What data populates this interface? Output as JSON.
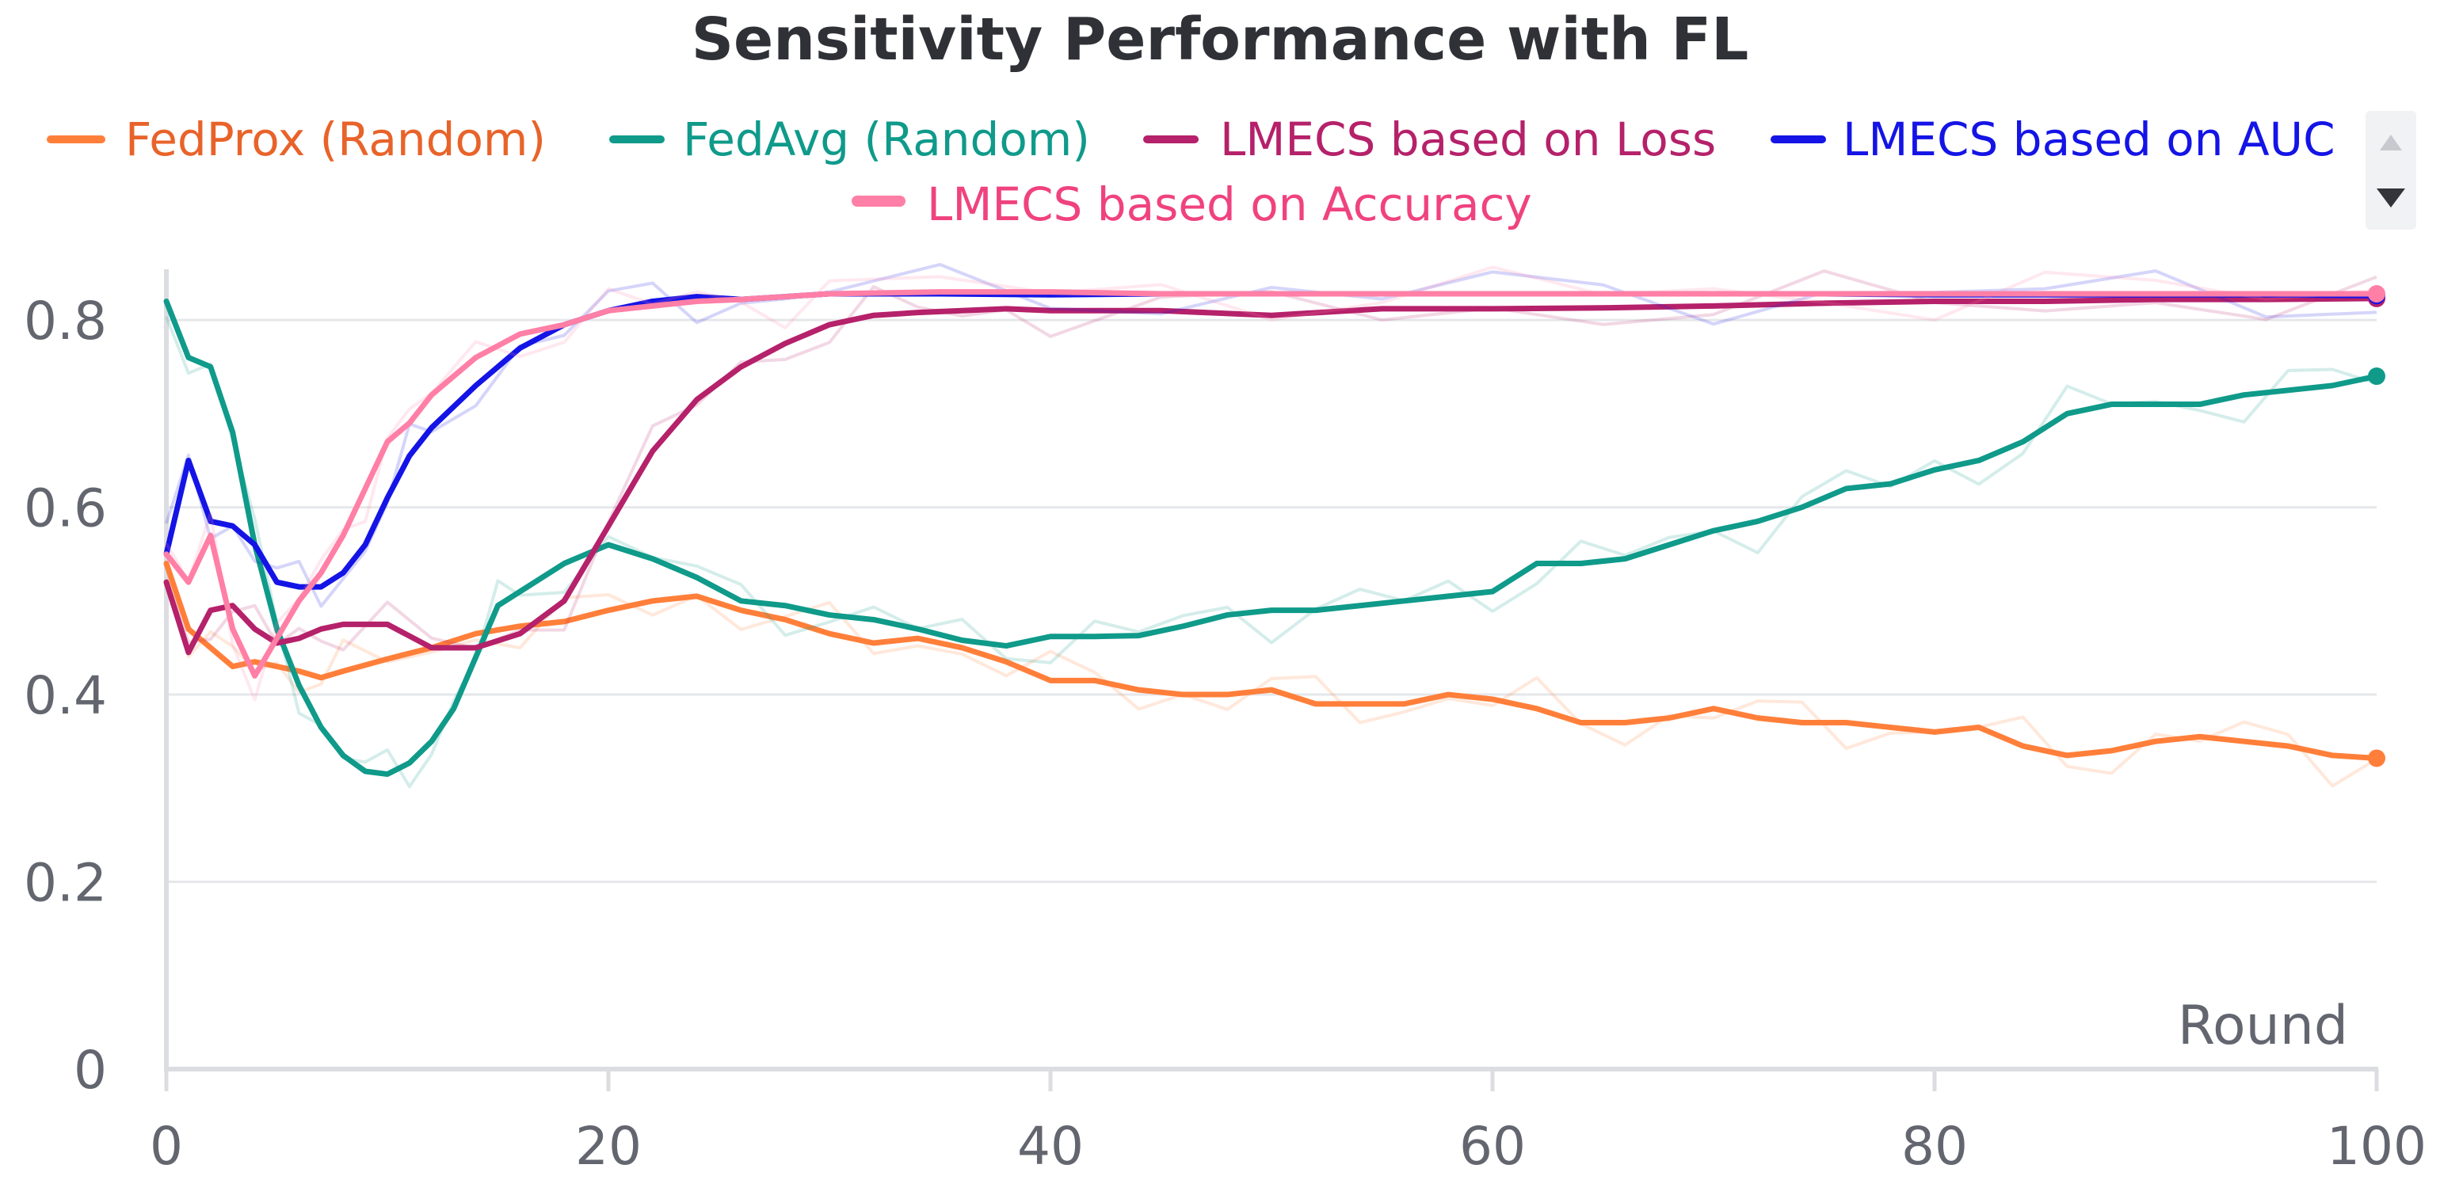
{
  "chart_data": {
    "type": "line",
    "title": "Sensitivity Performance with FL",
    "xlabel": "Round",
    "ylabel": "",
    "xlim": [
      0,
      100
    ],
    "ylim": [
      0,
      0.85
    ],
    "x_ticks": [
      0,
      20,
      40,
      60,
      80,
      100
    ],
    "x_tick_labels": [
      "0",
      "20",
      "40",
      "60",
      "80",
      "100"
    ],
    "y_ticks": [
      0,
      0.2,
      0.4,
      0.6,
      0.8
    ],
    "y_tick_labels": [
      "0",
      "0.2",
      "0.4",
      "0.6",
      "0.8"
    ],
    "grid": true,
    "legend_position": "top",
    "legend_scroll_icons": [
      "scroll-up-icon",
      "scroll-down-icon"
    ],
    "series": [
      {
        "name": "FedProx (Random)",
        "color": "#ff7f3a",
        "text_color": "#e8632a",
        "x": [
          0,
          1,
          2,
          3,
          4,
          5,
          6,
          7,
          8,
          10,
          12,
          14,
          16,
          18,
          20,
          22,
          24,
          26,
          28,
          30,
          32,
          34,
          36,
          38,
          40,
          42,
          44,
          46,
          48,
          50,
          52,
          54,
          56,
          58,
          60,
          62,
          64,
          66,
          68,
          70,
          72,
          74,
          76,
          78,
          80,
          82,
          84,
          86,
          88,
          90,
          92,
          94,
          96,
          98,
          100
        ],
        "values": [
          0.54,
          0.47,
          0.45,
          0.43,
          0.435,
          0.43,
          0.425,
          0.418,
          0.425,
          0.438,
          0.45,
          0.465,
          0.473,
          0.478,
          0.49,
          0.5,
          0.505,
          0.49,
          0.48,
          0.465,
          0.455,
          0.46,
          0.45,
          0.435,
          0.415,
          0.415,
          0.405,
          0.4,
          0.4,
          0.405,
          0.39,
          0.39,
          0.39,
          0.4,
          0.395,
          0.385,
          0.37,
          0.37,
          0.375,
          0.385,
          0.375,
          0.37,
          0.37,
          0.365,
          0.36,
          0.365,
          0.345,
          0.335,
          0.34,
          0.35,
          0.355,
          0.35,
          0.345,
          0.335,
          0.332
        ]
      },
      {
        "name": "FedAvg (Random)",
        "color": "#0f9a8a",
        "text_color": "#0f9a8a",
        "x": [
          0,
          1,
          2,
          3,
          4,
          5,
          6,
          7,
          8,
          9,
          10,
          11,
          12,
          13,
          14,
          15,
          16,
          18,
          20,
          22,
          24,
          26,
          28,
          30,
          32,
          34,
          36,
          38,
          40,
          42,
          44,
          46,
          48,
          50,
          52,
          54,
          56,
          58,
          60,
          62,
          64,
          66,
          68,
          70,
          72,
          74,
          76,
          78,
          80,
          82,
          84,
          86,
          88,
          90,
          92,
          94,
          96,
          98,
          100
        ],
        "values": [
          0.82,
          0.76,
          0.75,
          0.68,
          0.56,
          0.47,
          0.41,
          0.365,
          0.335,
          0.318,
          0.315,
          0.327,
          0.35,
          0.385,
          0.44,
          0.495,
          0.51,
          0.54,
          0.56,
          0.545,
          0.525,
          0.5,
          0.495,
          0.485,
          0.48,
          0.47,
          0.458,
          0.452,
          0.462,
          0.462,
          0.463,
          0.473,
          0.485,
          0.49,
          0.49,
          0.495,
          0.5,
          0.505,
          0.51,
          0.54,
          0.54,
          0.545,
          0.56,
          0.575,
          0.585,
          0.6,
          0.62,
          0.625,
          0.64,
          0.65,
          0.67,
          0.7,
          0.71,
          0.71,
          0.71,
          0.72,
          0.725,
          0.73,
          0.74
        ]
      },
      {
        "name": "LMECS based on Loss",
        "color": "#b5216a",
        "text_color": "#b5216a",
        "x": [
          0,
          1,
          2,
          3,
          4,
          5,
          6,
          7,
          8,
          10,
          12,
          14,
          16,
          18,
          20,
          22,
          24,
          26,
          28,
          30,
          32,
          34,
          36,
          38,
          40,
          45,
          50,
          55,
          60,
          65,
          70,
          75,
          80,
          85,
          90,
          95,
          100
        ],
        "values": [
          0.52,
          0.445,
          0.49,
          0.495,
          0.47,
          0.455,
          0.46,
          0.47,
          0.475,
          0.475,
          0.45,
          0.45,
          0.465,
          0.5,
          0.58,
          0.66,
          0.715,
          0.75,
          0.775,
          0.795,
          0.805,
          0.808,
          0.81,
          0.812,
          0.81,
          0.81,
          0.805,
          0.812,
          0.812,
          0.813,
          0.815,
          0.818,
          0.82,
          0.82,
          0.822,
          0.822,
          0.823
        ]
      },
      {
        "name": "LMECS based on AUC",
        "color": "#1414e6",
        "text_color": "#1414e6",
        "x": [
          0,
          1,
          2,
          3,
          4,
          5,
          6,
          7,
          8,
          9,
          10,
          11,
          12,
          14,
          16,
          18,
          20,
          22,
          24,
          26,
          28,
          30,
          35,
          40,
          45,
          50,
          55,
          60,
          65,
          70,
          75,
          80,
          85,
          90,
          95,
          100
        ],
        "values": [
          0.55,
          0.65,
          0.585,
          0.58,
          0.56,
          0.52,
          0.515,
          0.515,
          0.53,
          0.56,
          0.61,
          0.655,
          0.685,
          0.73,
          0.77,
          0.795,
          0.81,
          0.82,
          0.825,
          0.822,
          0.825,
          0.828,
          0.828,
          0.827,
          0.828,
          0.828,
          0.828,
          0.828,
          0.828,
          0.828,
          0.828,
          0.827,
          0.827,
          0.827,
          0.827,
          0.826
        ]
      },
      {
        "name": "LMECS based on Accuracy",
        "color": "#ff7fa6",
        "text_color": "#f0427f",
        "x": [
          0,
          1,
          2,
          3,
          4,
          5,
          6,
          7,
          8,
          9,
          10,
          11,
          12,
          14,
          16,
          18,
          20,
          22,
          24,
          26,
          28,
          30,
          35,
          40,
          45,
          50,
          55,
          60,
          65,
          70,
          75,
          80,
          85,
          90,
          95,
          100
        ],
        "values": [
          0.55,
          0.52,
          0.57,
          0.47,
          0.42,
          0.46,
          0.5,
          0.53,
          0.57,
          0.62,
          0.67,
          0.69,
          0.72,
          0.76,
          0.785,
          0.795,
          0.81,
          0.815,
          0.82,
          0.822,
          0.825,
          0.828,
          0.83,
          0.83,
          0.828,
          0.828,
          0.828,
          0.828,
          0.828,
          0.828,
          0.828,
          0.828,
          0.828,
          0.828,
          0.828,
          0.828
        ]
      }
    ]
  }
}
